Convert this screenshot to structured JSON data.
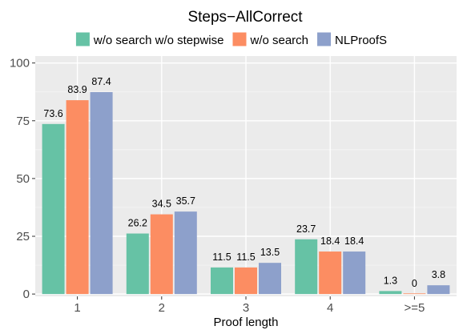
{
  "chart_data": {
    "type": "bar",
    "title": "Steps−AllCorrect",
    "xlabel": "Proof length",
    "ylabel": "",
    "categories": [
      "1",
      "2",
      "3",
      "4",
      ">=5"
    ],
    "ylim": [
      -1,
      103
    ],
    "yticks": [
      0,
      25,
      50,
      75,
      100
    ],
    "grid": true,
    "legend_position": "top",
    "series": [
      {
        "name": "w/o search w/o stepwise",
        "color": "#66c2a5",
        "values": [
          73.6,
          26.2,
          11.5,
          23.7,
          1.3
        ]
      },
      {
        "name": "w/o search",
        "color": "#fc8d62",
        "values": [
          83.9,
          34.5,
          11.5,
          18.4,
          0
        ]
      },
      {
        "name": "NLProofS",
        "color": "#8da0cb",
        "values": [
          87.4,
          35.7,
          13.5,
          18.4,
          3.8
        ]
      }
    ]
  }
}
